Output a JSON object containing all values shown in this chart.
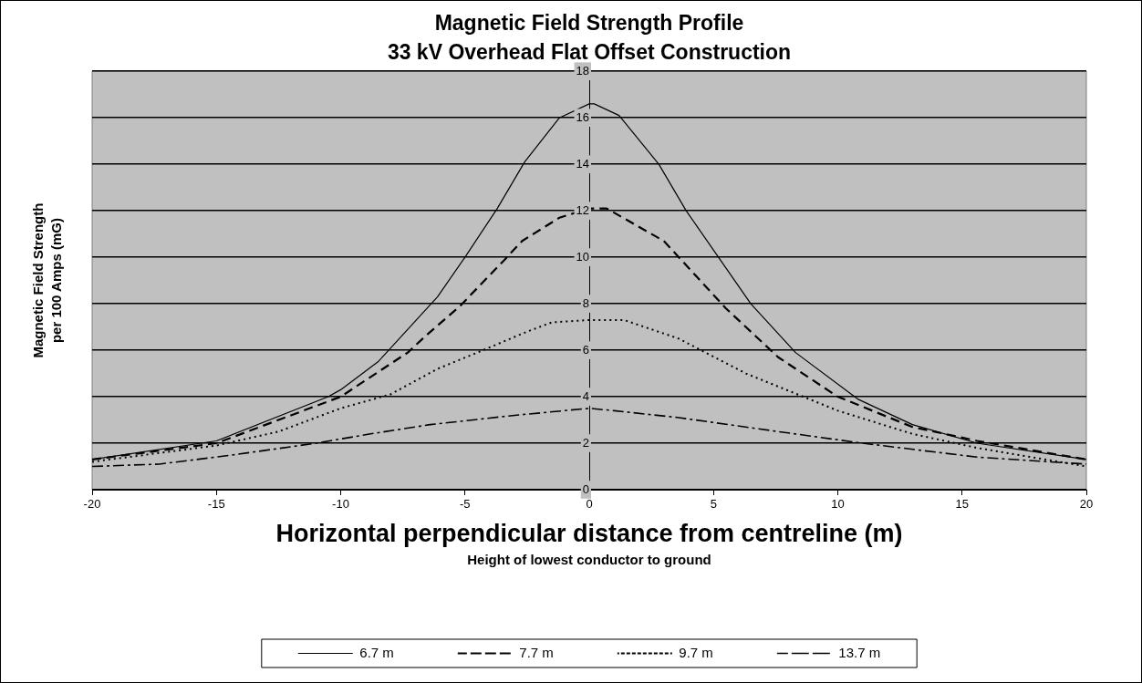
{
  "chart_data": {
    "type": "line",
    "title": "Magnetic Field Strength Profile",
    "subtitle": "33 kV Overhead Flat Offset Construction",
    "xlabel": "Horizontal perpendicular distance from centreline (m)",
    "ylabel": "Magnetic Field Strength\nper 100 Amps (mG)",
    "legend_title": "Height of lowest conductor to ground",
    "xlim": [
      -20,
      20
    ],
    "xticks": [
      -20,
      -15,
      -10,
      -5,
      0,
      5,
      10,
      15,
      20
    ],
    "ylim": [
      0,
      18
    ],
    "yticks": [
      0,
      2,
      4,
      6,
      8,
      10,
      12,
      14,
      16,
      18
    ],
    "grid": "y",
    "legend": "bottom",
    "marker": "none",
    "series": [
      {
        "name": "6.7 m",
        "color": "#000000",
        "line_style": "solid",
        "x": [
          -20,
          -15,
          -10.5,
          -10,
          -8.5,
          -6.1,
          -5,
          -3.7,
          -2.6,
          -1.2,
          0,
          0.2,
          1.2,
          2.8,
          3.9,
          5.2,
          6.5,
          8.3,
          10.8,
          13,
          15.6,
          20
        ],
        "values": [
          1.3,
          2.1,
          4,
          4.3,
          5.5,
          8.3,
          10,
          12.1,
          14.1,
          16,
          16.6,
          16.6,
          16.1,
          14,
          12,
          10,
          8,
          5.9,
          3.9,
          2.8,
          2,
          1.3
        ]
      },
      {
        "name": "7.7 m",
        "color": "#000000",
        "line_style": "dashed",
        "x": [
          -20,
          -15,
          -10,
          -8.3,
          -7.3,
          -6.6,
          -5.2,
          -3.4,
          -2.7,
          -1.2,
          0,
          0.7,
          3,
          5.5,
          7.6,
          10,
          13,
          15.6,
          20
        ],
        "values": [
          1.3,
          2,
          4,
          5.2,
          5.9,
          6.6,
          7.9,
          9.9,
          10.7,
          11.7,
          12.1,
          12.1,
          10.7,
          7.8,
          5.7,
          4,
          2.7,
          2.1,
          1.3
        ]
      },
      {
        "name": "9.7 m",
        "color": "#000000",
        "line_style": "dotted",
        "x": [
          -20,
          -15,
          -12.5,
          -10,
          -8,
          -6.1,
          -4.5,
          -2.5,
          -1.5,
          0,
          1.4,
          3.6,
          6.3,
          10,
          13,
          15.6,
          20
        ],
        "values": [
          1.2,
          1.9,
          2.5,
          3.5,
          4.1,
          5.2,
          5.9,
          6.8,
          7.2,
          7.3,
          7.3,
          6.5,
          5,
          3.4,
          2.4,
          1.8,
          1
        ]
      },
      {
        "name": "13.7 m",
        "color": "#000000",
        "line_style": "dashdot",
        "x": [
          -20,
          -17.3,
          -14.3,
          -11,
          -8.8,
          -6.4,
          -3,
          0,
          1,
          3.6,
          7.6,
          11,
          15.6,
          20
        ],
        "values": [
          1,
          1.1,
          1.5,
          2,
          2.4,
          2.8,
          3.2,
          3.5,
          3.4,
          3.1,
          2.5,
          2,
          1.4,
          1.1
        ]
      }
    ]
  }
}
